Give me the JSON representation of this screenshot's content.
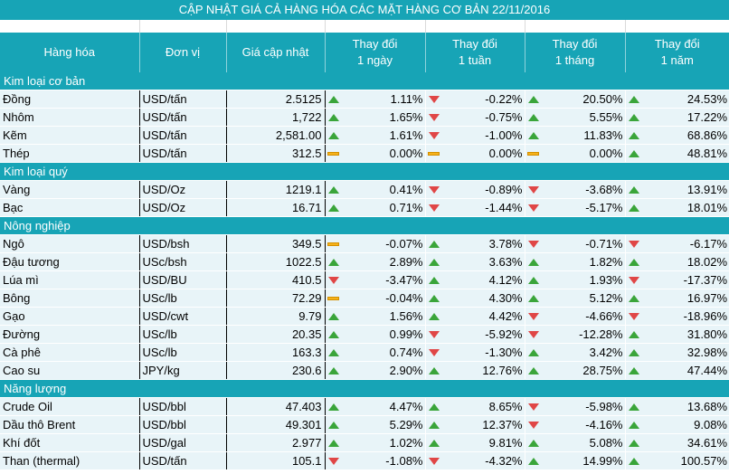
{
  "title": "CẬP NHẬT GIÁ CẢ HÀNG HÓA CÁC MẶT HÀNG CƠ BẢN 22/11/2016",
  "headers": {
    "commodity": "Hàng hóa",
    "unit": "Đơn vị",
    "price": "Giá cập nhật",
    "d1": [
      "Thay đổi",
      "1 ngày"
    ],
    "w1": [
      "Thay đổi",
      "1 tuần"
    ],
    "m1": [
      "Thay đổi",
      "1 tháng"
    ],
    "y1": [
      "Thay đổi",
      "1 năm"
    ]
  },
  "colors": {
    "header_bg": "#17a4b6",
    "row_bg": "#e8f4f8",
    "up": "#3aa53a",
    "down": "#e04646",
    "flat": "#f5b21c"
  },
  "groups": [
    {
      "name": "Kim loại cơ bản",
      "rows": [
        {
          "name": "Đồng",
          "unit": "USD/tấn",
          "price": "2.5125",
          "changes": [
            {
              "v": "1.11%",
              "t": "up"
            },
            {
              "v": "-0.22%",
              "t": "down"
            },
            {
              "v": "20.50%",
              "t": "up"
            },
            {
              "v": "24.53%",
              "t": "up"
            }
          ]
        },
        {
          "name": "Nhôm",
          "unit": "USD/tấn",
          "price": "1,722",
          "changes": [
            {
              "v": "1.65%",
              "t": "up"
            },
            {
              "v": "-0.75%",
              "t": "down"
            },
            {
              "v": "5.55%",
              "t": "up"
            },
            {
              "v": "17.22%",
              "t": "up"
            }
          ]
        },
        {
          "name": "Kẽm",
          "unit": "USD/tấn",
          "price": "2,581.00",
          "changes": [
            {
              "v": "1.61%",
              "t": "up"
            },
            {
              "v": "-1.00%",
              "t": "down"
            },
            {
              "v": "11.83%",
              "t": "up"
            },
            {
              "v": "68.86%",
              "t": "up"
            }
          ]
        },
        {
          "name": "Thép",
          "unit": "USD/tấn",
          "price": "312.5",
          "changes": [
            {
              "v": "0.00%",
              "t": "flat"
            },
            {
              "v": "0.00%",
              "t": "flat"
            },
            {
              "v": "0.00%",
              "t": "flat"
            },
            {
              "v": "48.81%",
              "t": "up"
            }
          ]
        }
      ]
    },
    {
      "name": "Kim loại quý",
      "rows": [
        {
          "name": "Vàng",
          "unit": "USD/Oz",
          "price": "1219.1",
          "changes": [
            {
              "v": "0.41%",
              "t": "up"
            },
            {
              "v": "-0.89%",
              "t": "down"
            },
            {
              "v": "-3.68%",
              "t": "down"
            },
            {
              "v": "13.91%",
              "t": "up"
            }
          ]
        },
        {
          "name": "Bạc",
          "unit": "USD/Oz",
          "price": "16.71",
          "changes": [
            {
              "v": "0.71%",
              "t": "up"
            },
            {
              "v": "-1.44%",
              "t": "down"
            },
            {
              "v": "-5.17%",
              "t": "down"
            },
            {
              "v": "18.01%",
              "t": "up"
            }
          ]
        }
      ]
    },
    {
      "name": "Nông nghiệp",
      "rows": [
        {
          "name": "Ngô",
          "unit": "USD/bsh",
          "price": "349.5",
          "changes": [
            {
              "v": "-0.07%",
              "t": "flat"
            },
            {
              "v": "3.78%",
              "t": "up"
            },
            {
              "v": "-0.71%",
              "t": "down"
            },
            {
              "v": "-6.17%",
              "t": "down"
            }
          ]
        },
        {
          "name": "Đậu tương",
          "unit": "USc/bsh",
          "price": "1022.5",
          "changes": [
            {
              "v": "2.89%",
              "t": "up"
            },
            {
              "v": "3.63%",
              "t": "up"
            },
            {
              "v": "1.82%",
              "t": "up"
            },
            {
              "v": "18.02%",
              "t": "up"
            }
          ]
        },
        {
          "name": "Lúa mì",
          "unit": "USD/BU",
          "price": "410.5",
          "changes": [
            {
              "v": "-3.47%",
              "t": "down"
            },
            {
              "v": "4.12%",
              "t": "up"
            },
            {
              "v": "1.93%",
              "t": "up"
            },
            {
              "v": "-17.37%",
              "t": "down"
            }
          ]
        },
        {
          "name": "Bông",
          "unit": "USc/lb",
          "price": "72.29",
          "changes": [
            {
              "v": "-0.04%",
              "t": "flat"
            },
            {
              "v": "4.30%",
              "t": "up"
            },
            {
              "v": "5.12%",
              "t": "up"
            },
            {
              "v": "16.97%",
              "t": "up"
            }
          ]
        },
        {
          "name": "Gạo",
          "unit": "USD/cwt",
          "price": "9.79",
          "changes": [
            {
              "v": "1.56%",
              "t": "up"
            },
            {
              "v": "4.42%",
              "t": "up"
            },
            {
              "v": "-4.66%",
              "t": "down"
            },
            {
              "v": "-18.96%",
              "t": "down"
            }
          ]
        },
        {
          "name": "Đường",
          "unit": "USc/lb",
          "price": "20.35",
          "changes": [
            {
              "v": "0.99%",
              "t": "up"
            },
            {
              "v": "-5.92%",
              "t": "down"
            },
            {
              "v": "-12.28%",
              "t": "down"
            },
            {
              "v": "31.80%",
              "t": "up"
            }
          ]
        },
        {
          "name": "Cà phê",
          "unit": "USc/lb",
          "price": "163.3",
          "changes": [
            {
              "v": "0.74%",
              "t": "up"
            },
            {
              "v": "-1.30%",
              "t": "down"
            },
            {
              "v": "3.42%",
              "t": "up"
            },
            {
              "v": "32.98%",
              "t": "up"
            }
          ]
        },
        {
          "name": "Cao su",
          "unit": "JPY/kg",
          "price": "230.6",
          "changes": [
            {
              "v": "2.90%",
              "t": "up"
            },
            {
              "v": "12.76%",
              "t": "up"
            },
            {
              "v": "28.75%",
              "t": "up"
            },
            {
              "v": "47.44%",
              "t": "up"
            }
          ]
        }
      ]
    },
    {
      "name": "Năng lượng",
      "rows": [
        {
          "name": "Crude Oil",
          "unit": "USD/bbl",
          "price": "47.403",
          "changes": [
            {
              "v": "4.47%",
              "t": "up"
            },
            {
              "v": "8.65%",
              "t": "up"
            },
            {
              "v": "-5.98%",
              "t": "down"
            },
            {
              "v": "13.68%",
              "t": "up"
            }
          ]
        },
        {
          "name": "Dầu thô Brent",
          "unit": "USD/bbl",
          "price": "49.301",
          "changes": [
            {
              "v": "5.29%",
              "t": "up"
            },
            {
              "v": "12.37%",
              "t": "up"
            },
            {
              "v": "-4.16%",
              "t": "down"
            },
            {
              "v": "9.08%",
              "t": "up"
            }
          ]
        },
        {
          "name": "Khí đốt",
          "unit": "USD/gal",
          "price": "2.977",
          "changes": [
            {
              "v": "1.02%",
              "t": "up"
            },
            {
              "v": "9.81%",
              "t": "up"
            },
            {
              "v": "5.08%",
              "t": "up"
            },
            {
              "v": "34.61%",
              "t": "up"
            }
          ]
        },
        {
          "name": "Than (thermal)",
          "unit": "USD/tấn",
          "price": "105.1",
          "changes": [
            {
              "v": "-1.08%",
              "t": "down"
            },
            {
              "v": "-4.32%",
              "t": "down"
            },
            {
              "v": "14.99%",
              "t": "up"
            },
            {
              "v": "100.57%",
              "t": "up"
            }
          ]
        }
      ]
    }
  ]
}
